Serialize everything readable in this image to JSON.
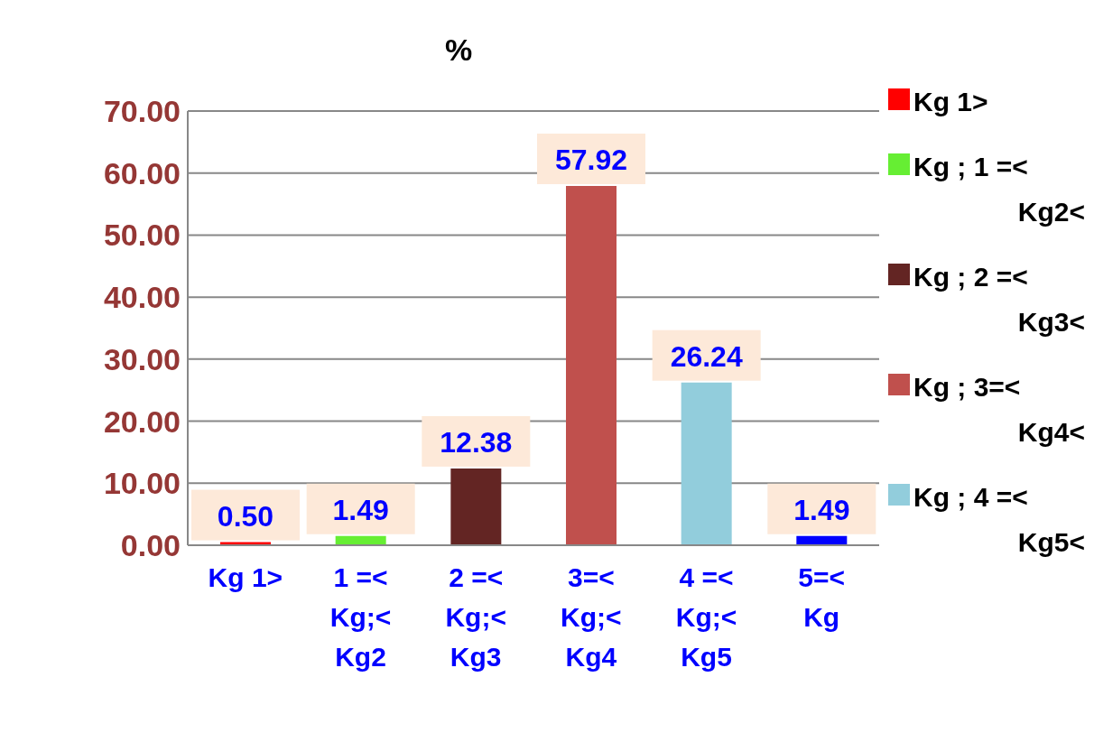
{
  "chart_data": {
    "type": "bar",
    "title": "%",
    "categories": [
      "Kg 1>",
      "1 =< Kg;< Kg2",
      "2 =< Kg;< Kg3",
      "3=< Kg;< Kg4",
      "4 =< Kg;< Kg5",
      "5=< Kg"
    ],
    "stacked": true,
    "series": [
      {
        "name": "Kg 1>",
        "color": "#ff0000",
        "values": [
          0.5,
          null,
          null,
          null,
          null,
          null
        ],
        "value_labels": [
          "0.50",
          null,
          null,
          null,
          null,
          null
        ]
      },
      {
        "name": "Kg ; 1 =< Kg2<",
        "color": "#66ee33",
        "values": [
          null,
          1.49,
          null,
          null,
          null,
          null
        ],
        "value_labels": [
          null,
          "1.49",
          null,
          null,
          null,
          null
        ]
      },
      {
        "name": "Kg ; 2 =< Kg3<",
        "color": "#632523",
        "values": [
          null,
          null,
          12.38,
          null,
          null,
          null
        ],
        "value_labels": [
          null,
          null,
          "12.38",
          null,
          null,
          null
        ]
      },
      {
        "name": "Kg ; 3=< Kg4<",
        "color": "#c0504d",
        "values": [
          null,
          null,
          null,
          57.92,
          null,
          null
        ],
        "value_labels": [
          null,
          null,
          null,
          "57.92",
          null,
          null
        ]
      },
      {
        "name": "Kg ; 4 =< Kg5<",
        "color": "#92cddc",
        "values": [
          null,
          null,
          null,
          null,
          26.24,
          null
        ],
        "value_labels": [
          null,
          null,
          null,
          null,
          "26.24",
          null
        ]
      },
      {
        "color": "#0000ff",
        "values": [
          null,
          null,
          null,
          null,
          null,
          1.49
        ],
        "value_labels": [
          null,
          null,
          null,
          null,
          null,
          "1.49"
        ]
      }
    ],
    "ylim": [
      0,
      70
    ],
    "yticks": [
      {
        "value": 0,
        "label": "0.00"
      },
      {
        "value": 10,
        "label": "10.00"
      },
      {
        "value": 20,
        "label": "20.00"
      },
      {
        "value": 30,
        "label": "30.00"
      },
      {
        "value": 40,
        "label": "40.00"
      },
      {
        "value": 50,
        "label": "50.00"
      },
      {
        "value": 60,
        "label": "60.00"
      },
      {
        "value": 70,
        "label": "70.00"
      }
    ],
    "grid": "y",
    "legend": "right"
  }
}
